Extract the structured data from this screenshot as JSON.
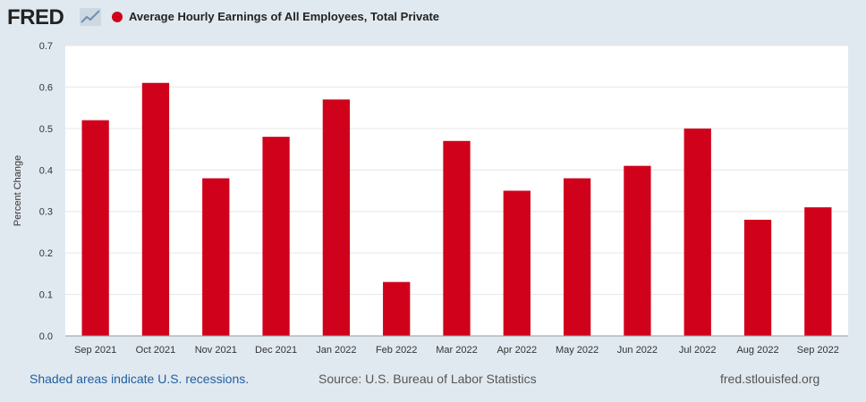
{
  "header": {
    "logo_text": "FRED",
    "logo_icon": "trend-line-icon",
    "series_label": "Average Hourly Earnings of All Employees, Total Private",
    "series_color": "#d0021b"
  },
  "footer": {
    "recession_note": "Shaded areas indicate U.S. recessions.",
    "source": "Source: U.S. Bureau of Labor Statistics",
    "site": "fred.stlouisfed.org"
  },
  "chart_data": {
    "type": "bar",
    "ylabel": "Percent Change",
    "ylim": [
      0,
      0.7
    ],
    "yticks": [
      "0.0",
      "0.1",
      "0.2",
      "0.3",
      "0.4",
      "0.5",
      "0.6",
      "0.7"
    ],
    "grid": true,
    "categories": [
      "Sep 2021",
      "Oct 2021",
      "Nov 2021",
      "Dec 2021",
      "Jan 2022",
      "Feb 2022",
      "Mar 2022",
      "Apr 2022",
      "May 2022",
      "Jun 2022",
      "Jul 2022",
      "Aug 2022",
      "Sep 2022"
    ],
    "series": [
      {
        "name": "Average Hourly Earnings of All Employees, Total Private",
        "color": "#d0021b",
        "values": [
          0.52,
          0.61,
          0.38,
          0.48,
          0.57,
          0.13,
          0.47,
          0.35,
          0.38,
          0.41,
          0.5,
          0.28,
          0.31
        ]
      }
    ]
  }
}
